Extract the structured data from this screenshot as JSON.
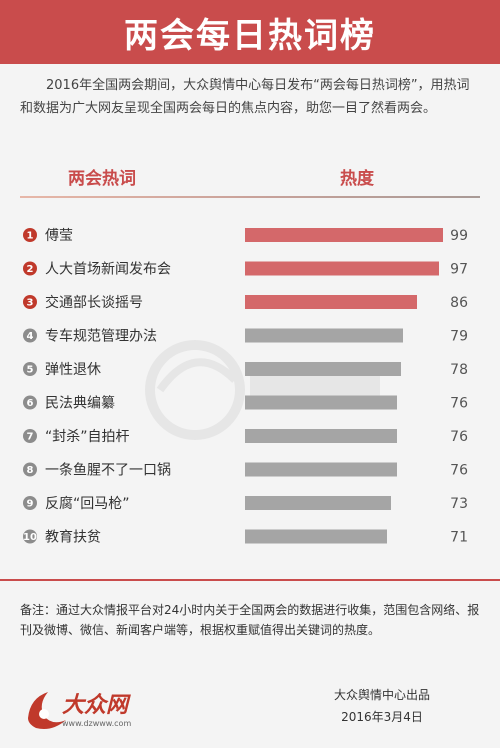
{
  "header": {
    "title": "两会每日热词榜"
  },
  "intro": "2016年全国两会期间，大众舆情中心每日发布“两会每日热词榜”，用热词和数据为广大网友呈现全国两会每日的焦点内容，助您一目了然看两会。",
  "columns": {
    "left": "两会热词",
    "right": "热度"
  },
  "colors": {
    "top": "#d4686a",
    "rest": "#a5a5a5",
    "rank_top": "#c0392b",
    "rank_rest": "#8c8c8c",
    "accent": "#c94c4c"
  },
  "chart_data": {
    "type": "bar",
    "orientation": "horizontal",
    "ranks": [
      "1",
      "2",
      "3",
      "4",
      "5",
      "6",
      "7",
      "8",
      "9",
      "10"
    ],
    "categories": [
      "傅莹",
      "人大首场新闻发布会",
      "交通部长谈摇号",
      "专车规范管理办法",
      "弹性退休",
      "民法典编纂",
      "“封杀”自拍杆",
      "一条鱼腥不了一口锅",
      "反腐“回马枪”",
      "教育扶贫"
    ],
    "values": [
      99,
      97,
      86,
      79,
      78,
      76,
      76,
      76,
      73,
      71
    ],
    "highlight_count": 3,
    "xlim": [
      0,
      100
    ]
  },
  "note": "备注：通过大众情报平台对24小时内关于全国两会的数据进行收集，范围包含网络、报刊及微博、微信、新闻客户端等，根据权重赋值得出关键词的热度。",
  "logo": {
    "name": "大众网",
    "url": "www.dzwww.com"
  },
  "credit": {
    "line1": "大众舆情中心出品",
    "line2": "2016年3月4日"
  }
}
